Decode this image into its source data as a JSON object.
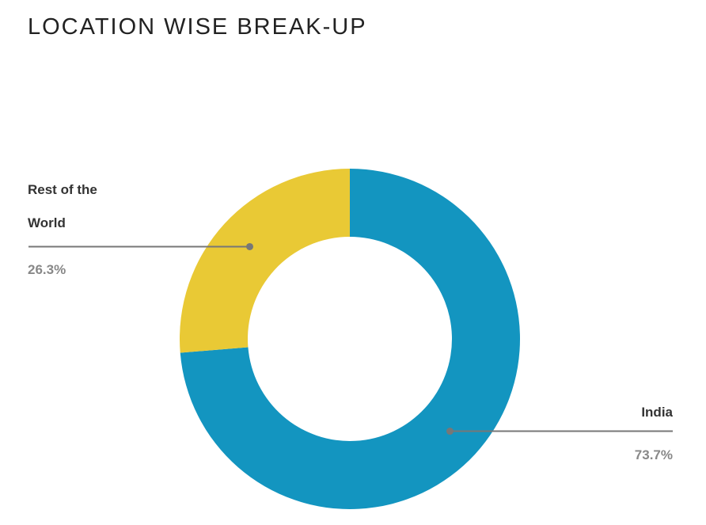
{
  "chart_data": {
    "type": "donut",
    "title": "LOCATION WISE BREAK-UP",
    "categories": [
      "India",
      "Rest of the World"
    ],
    "values": [
      73.7,
      26.3
    ],
    "value_labels": [
      "73.7%",
      "26.3%"
    ],
    "colors": [
      "#1395c0",
      "#e9c935"
    ]
  }
}
